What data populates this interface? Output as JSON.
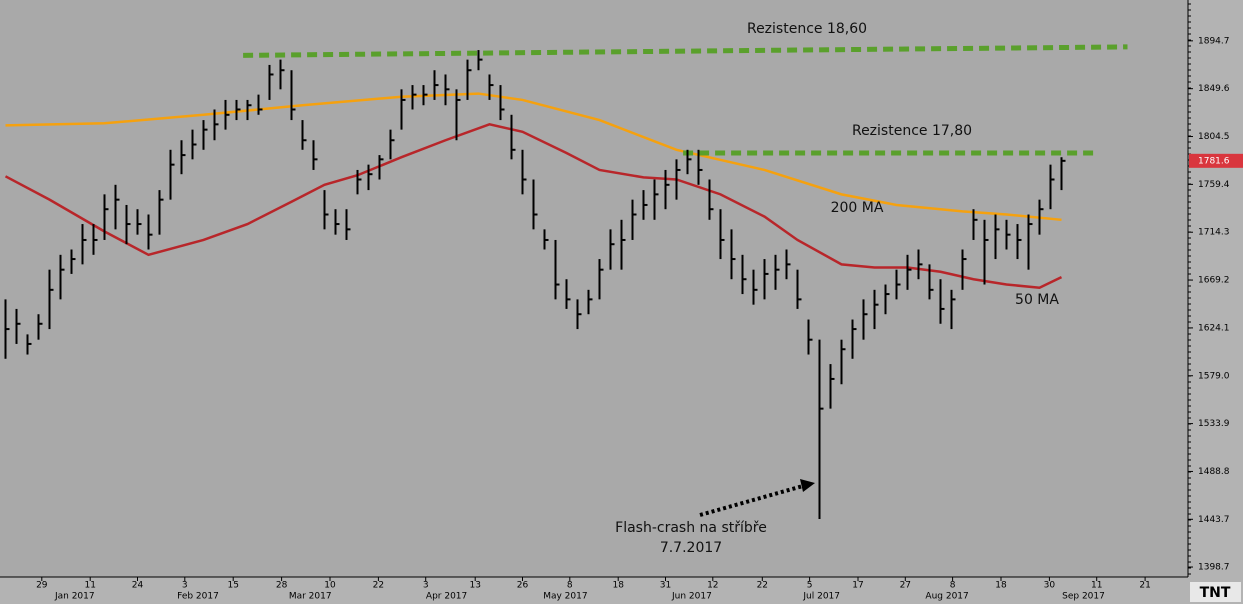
{
  "chart_data": {
    "type": "ohlc",
    "bars": {
      "high": [
        1651,
        1642,
        1618,
        1637,
        1679,
        1693,
        1698,
        1722,
        1722,
        1750,
        1759,
        1740,
        1736,
        1731,
        1754,
        1792,
        1801,
        1811,
        1820,
        1830,
        1839,
        1839,
        1839,
        1844,
        1872,
        1877,
        1867,
        1820,
        1801,
        1754,
        1736,
        1736,
        1773,
        1778,
        1787,
        1811,
        1849,
        1853,
        1853,
        1867,
        1863,
        1849,
        1877,
        1886,
        1863,
        1853,
        1825,
        1792,
        1764,
        1717,
        1707,
        1670,
        1651,
        1660,
        1689,
        1717,
        1726,
        1745,
        1754,
        1764,
        1773,
        1783,
        1792,
        1792,
        1764,
        1736,
        1717,
        1693,
        1679,
        1689,
        1693,
        1698,
        1679,
        1632,
        1613,
        1590,
        1613,
        1632,
        1651,
        1660,
        1665,
        1679,
        1693,
        1698,
        1684,
        1670,
        1660,
        1698,
        1736,
        1726,
        1731,
        1726,
        1722,
        1731,
        1745,
        1778,
        1785
      ],
      "low": [
        1595,
        1609,
        1599,
        1613,
        1623,
        1651,
        1675,
        1684,
        1693,
        1707,
        1717,
        1703,
        1712,
        1698,
        1712,
        1745,
        1769,
        1783,
        1792,
        1801,
        1811,
        1820,
        1820,
        1825,
        1839,
        1849,
        1820,
        1792,
        1773,
        1717,
        1712,
        1707,
        1750,
        1754,
        1764,
        1783,
        1811,
        1830,
        1834,
        1839,
        1834,
        1801,
        1839,
        1867,
        1839,
        1820,
        1783,
        1750,
        1717,
        1698,
        1651,
        1642,
        1623,
        1637,
        1651,
        1679,
        1679,
        1707,
        1726,
        1726,
        1736,
        1745,
        1769,
        1759,
        1726,
        1689,
        1670,
        1656,
        1646,
        1651,
        1660,
        1670,
        1642,
        1599,
        1444,
        1548,
        1571,
        1595,
        1613,
        1623,
        1637,
        1651,
        1660,
        1670,
        1651,
        1628,
        1623,
        1660,
        1707,
        1665,
        1689,
        1698,
        1689,
        1679,
        1712,
        1736,
        1754
      ],
      "close": [
        1623,
        1628,
        1609,
        1628,
        1660,
        1679,
        1689,
        1707,
        1707,
        1736,
        1745,
        1722,
        1722,
        1712,
        1745,
        1778,
        1787,
        1797,
        1811,
        1816,
        1825,
        1830,
        1834,
        1830,
        1863,
        1867,
        1830,
        1801,
        1783,
        1731,
        1722,
        1717,
        1764,
        1769,
        1783,
        1801,
        1839,
        1844,
        1844,
        1853,
        1849,
        1839,
        1867,
        1877,
        1853,
        1830,
        1792,
        1764,
        1731,
        1707,
        1665,
        1651,
        1637,
        1651,
        1679,
        1703,
        1707,
        1731,
        1740,
        1750,
        1759,
        1773,
        1783,
        1773,
        1736,
        1707,
        1689,
        1670,
        1660,
        1675,
        1679,
        1684,
        1651,
        1613,
        1548,
        1576,
        1604,
        1623,
        1637,
        1646,
        1656,
        1665,
        1679,
        1684,
        1660,
        1642,
        1651,
        1689,
        1726,
        1707,
        1717,
        1712,
        1707,
        1722,
        1736,
        1764,
        1781.6
      ],
      "color": "#000000"
    },
    "series": [
      {
        "name": "200 MA",
        "color": "#f5a10f",
        "x": [
          0,
          9,
          18,
          27,
          36,
          43,
          47,
          54,
          61,
          69,
          76,
          81,
          87,
          91,
          96
        ],
        "values": [
          1815,
          1817,
          1825,
          1834,
          1842,
          1845,
          1839,
          1820,
          1792,
          1773,
          1750,
          1740,
          1734,
          1731,
          1726
        ]
      },
      {
        "name": "50 MA",
        "color": "#b8262a",
        "x": [
          0,
          4,
          9,
          13,
          18,
          22,
          26,
          29,
          32,
          36,
          40,
          44,
          47,
          51,
          54,
          58,
          61,
          65,
          69,
          72,
          76,
          79,
          82,
          85,
          88,
          91,
          94,
          96
        ],
        "values": [
          1767,
          1745,
          1715,
          1693,
          1707,
          1722,
          1743,
          1759,
          1768,
          1785,
          1801,
          1816,
          1809,
          1789,
          1773,
          1766,
          1764,
          1750,
          1729,
          1707,
          1684,
          1681,
          1681,
          1677,
          1670,
          1665,
          1662,
          1672
        ]
      }
    ],
    "resistance_lines": [
      {
        "label": "Rezistence 18,60",
        "x": [
          21.6,
          102
        ],
        "values": [
          1881,
          1889
        ],
        "color": "#5aa02c"
      },
      {
        "label": "Rezistence 17,80",
        "x": [
          61.6,
          99
        ],
        "values": [
          1789,
          1789
        ],
        "color": "#5aa02c"
      }
    ],
    "annotations": [
      "Flash-crash na stříbře",
      "7.7.2017"
    ],
    "xlim": [
      -0.5,
      107.5
    ],
    "ylim": [
      1389.3,
      1933.2
    ],
    "yticks": [
      1894.7,
      1849.6,
      1804.5,
      1759.4,
      1714.3,
      1669.2,
      1624.1,
      {
        "value": 1579.0,
        "label": "1579.0"
      },
      1533.9,
      1488.8,
      1443.7,
      1398.7
    ],
    "xticks": [
      {
        "value": 3.3,
        "label": "29"
      },
      {
        "value": 7.7,
        "label": "11"
      },
      {
        "value": 12,
        "label": "24"
      },
      {
        "value": 16.3,
        "label": "3"
      },
      {
        "value": 20.7,
        "label": "15"
      },
      {
        "value": 25.1,
        "label": "28"
      },
      {
        "value": 29.5,
        "label": "10"
      },
      {
        "value": 33.9,
        "label": "22"
      },
      {
        "value": 38.2,
        "label": "3"
      },
      {
        "value": 42.7,
        "label": "13"
      },
      {
        "value": 47,
        "label": "26"
      },
      {
        "value": 51.3,
        "label": "8"
      },
      {
        "value": 55.7,
        "label": "18"
      },
      {
        "value": 60,
        "label": "31"
      },
      {
        "value": 64.3,
        "label": "12"
      },
      {
        "value": 68.8,
        "label": "22"
      },
      {
        "value": 73.1,
        "label": "5"
      },
      {
        "value": 77.5,
        "label": "17"
      },
      {
        "value": 81.8,
        "label": "27"
      },
      {
        "value": 86.1,
        "label": "8"
      },
      {
        "value": 90.5,
        "label": "18"
      },
      {
        "value": 94.9,
        "label": "30"
      },
      {
        "value": 99.2,
        "label": "11"
      },
      {
        "value": 103.6,
        "label": "21"
      }
    ],
    "month_labels": [
      {
        "value": 6.3,
        "label": "Jan 2017"
      },
      {
        "value": 17.5,
        "label": "Feb 2017"
      },
      {
        "value": 27.7,
        "label": "Mar 2017"
      },
      {
        "value": 40.1,
        "label": "Apr 2017"
      },
      {
        "value": 50.9,
        "label": "May 2017"
      },
      {
        "value": 62.4,
        "label": "Jun 2017"
      },
      {
        "value": 74.2,
        "label": "Jul 2017"
      },
      {
        "value": 85.6,
        "label": "Aug 2017"
      },
      {
        "value": 98,
        "label": "Sep 2017"
      }
    ],
    "last_price_color": "#d9363e",
    "logo": "TNT"
  }
}
